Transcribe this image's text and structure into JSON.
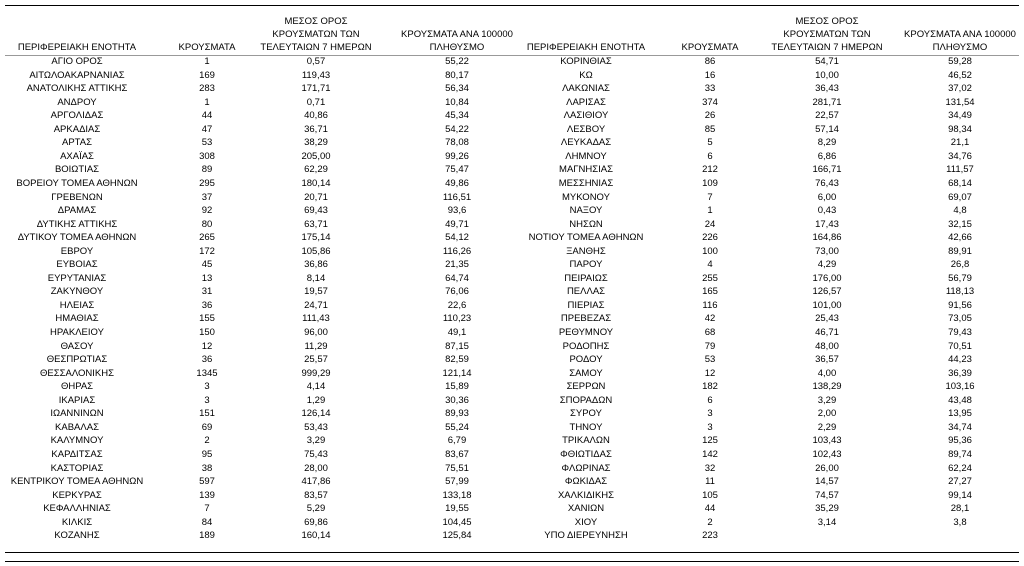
{
  "tables": [
    {
      "headers": [
        "ΠΕΡΙΦΕΡΕΙΑΚΗ ΕΝΟΤΗΤΑ",
        "ΚΡΟΥΣΜΑΤΑ",
        "ΜΕΣΟΣ ΟΡΟΣ ΚΡΟΥΣΜΑΤΩΝ ΤΩΝ ΤΕΛΕΥΤΑΙΩΝ 7 ΗΜΕΡΩΝ",
        "ΚΡΟΥΣΜΑΤΑ ΑΝΑ 100000 ΠΛΗΘΥΣΜΟ"
      ],
      "rows": [
        [
          "ΑΓΙΟ ΟΡΟΣ",
          "1",
          "0,57",
          "55,22"
        ],
        [
          "ΑΙΤΩΛΟΑΚΑΡΝΑΝΙΑΣ",
          "169",
          "119,43",
          "80,17"
        ],
        [
          "ΑΝΑΤΟΛΙΚΗΣ ΑΤΤΙΚΗΣ",
          "283",
          "171,71",
          "56,34"
        ],
        [
          "ΑΝΔΡΟΥ",
          "1",
          "0,71",
          "10,84"
        ],
        [
          "ΑΡΓΟΛΙΔΑΣ",
          "44",
          "40,86",
          "45,34"
        ],
        [
          "ΑΡΚΑΔΙΑΣ",
          "47",
          "36,71",
          "54,22"
        ],
        [
          "ΑΡΤΑΣ",
          "53",
          "38,29",
          "78,08"
        ],
        [
          "ΑΧΑΪΑΣ",
          "308",
          "205,00",
          "99,26"
        ],
        [
          "ΒΟΙΩΤΙΑΣ",
          "89",
          "62,29",
          "75,47"
        ],
        [
          "ΒΟΡΕΙΟΥ ΤΟΜΕΑ ΑΘΗΝΩΝ",
          "295",
          "180,14",
          "49,86"
        ],
        [
          "ΓΡΕΒΕΝΩΝ",
          "37",
          "20,71",
          "116,51"
        ],
        [
          "ΔΡΑΜΑΣ",
          "92",
          "69,43",
          "93,6"
        ],
        [
          "ΔΥΤΙΚΗΣ ΑΤΤΙΚΗΣ",
          "80",
          "63,71",
          "49,71"
        ],
        [
          "ΔΥΤΙΚΟΥ ΤΟΜΕΑ ΑΘΗΝΩΝ",
          "265",
          "175,14",
          "54,12"
        ],
        [
          "ΕΒΡΟΥ",
          "172",
          "105,86",
          "116,26"
        ],
        [
          "ΕΥΒΟΙΑΣ",
          "45",
          "36,86",
          "21,35"
        ],
        [
          "ΕΥΡΥΤΑΝΙΑΣ",
          "13",
          "8,14",
          "64,74"
        ],
        [
          "ΖΑΚΥΝΘΟΥ",
          "31",
          "19,57",
          "76,06"
        ],
        [
          "ΗΛΕΙΑΣ",
          "36",
          "24,71",
          "22,6"
        ],
        [
          "ΗΜΑΘΙΑΣ",
          "155",
          "111,43",
          "110,23"
        ],
        [
          "ΗΡΑΚΛΕΙΟΥ",
          "150",
          "96,00",
          "49,1"
        ],
        [
          "ΘΑΣΟΥ",
          "12",
          "11,29",
          "87,15"
        ],
        [
          "ΘΕΣΠΡΩΤΙΑΣ",
          "36",
          "25,57",
          "82,59"
        ],
        [
          "ΘΕΣΣΑΛΟΝΙΚΗΣ",
          "1345",
          "999,29",
          "121,14"
        ],
        [
          "ΘΗΡΑΣ",
          "3",
          "4,14",
          "15,89"
        ],
        [
          "ΙΚΑΡΙΑΣ",
          "3",
          "1,29",
          "30,36"
        ],
        [
          "ΙΩΑΝΝΙΝΩΝ",
          "151",
          "126,14",
          "89,93"
        ],
        [
          "ΚΑΒΑΛΑΣ",
          "69",
          "53,43",
          "55,24"
        ],
        [
          "ΚΑΛΥΜΝΟΥ",
          "2",
          "3,29",
          "6,79"
        ],
        [
          "ΚΑΡΔΙΤΣΑΣ",
          "95",
          "75,43",
          "83,67"
        ],
        [
          "ΚΑΣΤΟΡΙΑΣ",
          "38",
          "28,00",
          "75,51"
        ],
        [
          "ΚΕΝΤΡΙΚΟΥ ΤΟΜΕΑ ΑΘΗΝΩΝ",
          "597",
          "417,86",
          "57,99"
        ],
        [
          "ΚΕΡΚΥΡΑΣ",
          "139",
          "83,57",
          "133,18"
        ],
        [
          "ΚΕΦΑΛΛΗΝΙΑΣ",
          "7",
          "5,29",
          "19,55"
        ],
        [
          "ΚΙΛΚΙΣ",
          "84",
          "69,86",
          "104,45"
        ],
        [
          "ΚΟΖΑΝΗΣ",
          "189",
          "160,14",
          "125,84"
        ]
      ]
    },
    {
      "headers": [
        "ΠΕΡΙΦΕΡΕΙΑΚΗ ΕΝΟΤΗΤΑ",
        "ΚΡΟΥΣΜΑΤΑ",
        "ΜΕΣΟΣ ΟΡΟΣ ΚΡΟΥΣΜΑΤΩΝ ΤΩΝ ΤΕΛΕΥΤΑΙΩΝ 7 ΗΜΕΡΩΝ",
        "ΚΡΟΥΣΜΑΤΑ ΑΝΑ 100000 ΠΛΗΘΥΣΜΟ"
      ],
      "rows": [
        [
          "ΚΟΡΙΝΘΙΑΣ",
          "86",
          "54,71",
          "59,28"
        ],
        [
          "ΚΩ",
          "16",
          "10,00",
          "46,52"
        ],
        [
          "ΛΑΚΩΝΙΑΣ",
          "33",
          "36,43",
          "37,02"
        ],
        [
          "ΛΑΡΙΣΑΣ",
          "374",
          "281,71",
          "131,54"
        ],
        [
          "ΛΑΣΙΘΙΟΥ",
          "26",
          "22,57",
          "34,49"
        ],
        [
          "ΛΕΣΒΟΥ",
          "85",
          "57,14",
          "98,34"
        ],
        [
          "ΛΕΥΚΑΔΑΣ",
          "5",
          "8,29",
          "21,1"
        ],
        [
          "ΛΗΜΝΟΥ",
          "6",
          "6,86",
          "34,76"
        ],
        [
          "ΜΑΓΝΗΣΙΑΣ",
          "212",
          "166,71",
          "111,57"
        ],
        [
          "ΜΕΣΣΗΝΙΑΣ",
          "109",
          "76,43",
          "68,14"
        ],
        [
          "ΜΥΚΟΝΟΥ",
          "7",
          "6,00",
          "69,07"
        ],
        [
          "ΝΑΞΟΥ",
          "1",
          "0,43",
          "4,8"
        ],
        [
          "ΝΗΣΩΝ",
          "24",
          "17,43",
          "32,15"
        ],
        [
          "ΝΟΤΙΟΥ ΤΟΜΕΑ ΑΘΗΝΩΝ",
          "226",
          "164,86",
          "42,66"
        ],
        [
          "ΞΑΝΘΗΣ",
          "100",
          "73,00",
          "89,91"
        ],
        [
          "ΠΑΡΟΥ",
          "4",
          "4,29",
          "26,8"
        ],
        [
          "ΠΕΙΡΑΙΩΣ",
          "255",
          "176,00",
          "56,79"
        ],
        [
          "ΠΕΛΛΑΣ",
          "165",
          "126,57",
          "118,13"
        ],
        [
          "ΠΙΕΡΙΑΣ",
          "116",
          "101,00",
          "91,56"
        ],
        [
          "ΠΡΕΒΕΖΑΣ",
          "42",
          "25,43",
          "73,05"
        ],
        [
          "ΡΕΘΥΜΝΟΥ",
          "68",
          "46,71",
          "79,43"
        ],
        [
          "ΡΟΔΟΠΗΣ",
          "79",
          "48,00",
          "70,51"
        ],
        [
          "ΡΟΔΟΥ",
          "53",
          "36,57",
          "44,23"
        ],
        [
          "ΣΑΜΟΥ",
          "12",
          "4,00",
          "36,39"
        ],
        [
          "ΣΕΡΡΩΝ",
          "182",
          "138,29",
          "103,16"
        ],
        [
          "ΣΠΟΡΑΔΩΝ",
          "6",
          "3,29",
          "43,48"
        ],
        [
          "ΣΥΡΟΥ",
          "3",
          "2,00",
          "13,95"
        ],
        [
          "ΤΗΝΟΥ",
          "3",
          "2,29",
          "34,74"
        ],
        [
          "ΤΡΙΚΑΛΩΝ",
          "125",
          "103,43",
          "95,36"
        ],
        [
          "ΦΘΙΩΤΙΔΑΣ",
          "142",
          "102,43",
          "89,74"
        ],
        [
          "ΦΛΩΡΙΝΑΣ",
          "32",
          "26,00",
          "62,24"
        ],
        [
          "ΦΩΚΙΔΑΣ",
          "11",
          "14,57",
          "27,27"
        ],
        [
          "ΧΑΛΚΙΔΙΚΗΣ",
          "105",
          "74,57",
          "99,14"
        ],
        [
          "ΧΑΝΙΩΝ",
          "44",
          "35,29",
          "28,1"
        ],
        [
          "ΧΙΟΥ",
          "2",
          "3,14",
          "3,8"
        ],
        [
          "ΥΠΟ ΔΙΕΡΕΥΝΗΣΗ",
          "223"
        ]
      ]
    }
  ]
}
